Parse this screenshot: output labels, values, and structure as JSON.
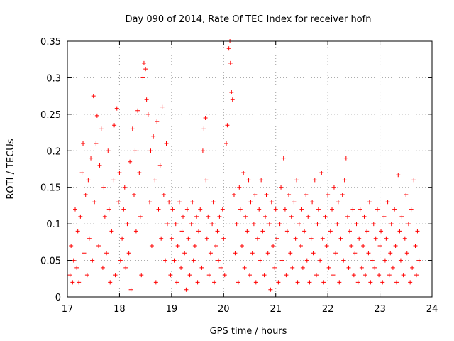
{
  "chart_data": {
    "type": "scatter",
    "title": "Day 090 of 2014, Rate Of TEC Index for receiver hofn",
    "xlabel": "GPS time / hours",
    "ylabel": "ROTI / TECUs",
    "xlim": [
      17,
      24
    ],
    "ylim": [
      0,
      0.35
    ],
    "xticks": [
      17,
      18,
      19,
      20,
      21,
      22,
      23,
      24
    ],
    "yticks": [
      0,
      0.05,
      0.1,
      0.15,
      0.2,
      0.25,
      0.3,
      0.35
    ],
    "xtick_labels": [
      "17",
      "18",
      "19",
      "20",
      "21",
      "22",
      "23",
      "24"
    ],
    "ytick_labels": [
      "0",
      "0.05",
      "0.1",
      "0.15",
      "0.2",
      "0.25",
      "0.3",
      "0.35"
    ],
    "grid": true,
    "marker": "+",
    "color": "#ff0000",
    "x_data_end": 23.75,
    "series": [
      {
        "name": "ROTI",
        "note": "dense scatter; points below are representative samples read from the plot",
        "points": [
          [
            17.05,
            0.03
          ],
          [
            17.07,
            0.07
          ],
          [
            17.1,
            0.02
          ],
          [
            17.12,
            0.05
          ],
          [
            17.15,
            0.12
          ],
          [
            17.18,
            0.04
          ],
          [
            17.2,
            0.09
          ],
          [
            17.22,
            0.02
          ],
          [
            17.25,
            0.11
          ],
          [
            17.28,
            0.17
          ],
          [
            17.3,
            0.21
          ],
          [
            17.32,
            0.06
          ],
          [
            17.35,
            0.14
          ],
          [
            17.38,
            0.03
          ],
          [
            17.4,
            0.16
          ],
          [
            17.42,
            0.08
          ],
          [
            17.45,
            0.19
          ],
          [
            17.48,
            0.05
          ],
          [
            17.5,
            0.275
          ],
          [
            17.52,
            0.13
          ],
          [
            17.55,
            0.21
          ],
          [
            17.57,
            0.248
          ],
          [
            17.6,
            0.07
          ],
          [
            17.62,
            0.18
          ],
          [
            17.65,
            0.23
          ],
          [
            17.68,
            0.04
          ],
          [
            17.7,
            0.15
          ],
          [
            17.72,
            0.11
          ],
          [
            17.75,
            0.06
          ],
          [
            17.78,
            0.2
          ],
          [
            17.8,
            0.12
          ],
          [
            17.82,
            0.02
          ],
          [
            17.85,
            0.09
          ],
          [
            17.88,
            0.16
          ],
          [
            17.9,
            0.235
          ],
          [
            17.92,
            0.03
          ],
          [
            17.95,
            0.258
          ],
          [
            17.98,
            0.13
          ],
          [
            18.0,
            0.17
          ],
          [
            18.02,
            0.05
          ],
          [
            18.05,
            0.08
          ],
          [
            18.08,
            0.12
          ],
          [
            18.1,
            0.15
          ],
          [
            18.12,
            0.04
          ],
          [
            18.15,
            0.1
          ],
          [
            18.18,
            0.06
          ],
          [
            18.2,
            0.185
          ],
          [
            18.22,
            0.01
          ],
          [
            18.25,
            0.23
          ],
          [
            18.28,
            0.14
          ],
          [
            18.3,
            0.2
          ],
          [
            18.32,
            0.09
          ],
          [
            18.35,
            0.255
          ],
          [
            18.38,
            0.17
          ],
          [
            18.4,
            0.11
          ],
          [
            18.42,
            0.03
          ],
          [
            18.45,
            0.3
          ],
          [
            18.47,
            0.32
          ],
          [
            18.5,
            0.312
          ],
          [
            18.52,
            0.27
          ],
          [
            18.55,
            0.25
          ],
          [
            18.58,
            0.13
          ],
          [
            18.6,
            0.2
          ],
          [
            18.62,
            0.07
          ],
          [
            18.65,
            0.22
          ],
          [
            18.68,
            0.16
          ],
          [
            18.7,
            0.02
          ],
          [
            18.72,
            0.24
          ],
          [
            18.75,
            0.12
          ],
          [
            18.78,
            0.18
          ],
          [
            18.8,
            0.08
          ],
          [
            18.82,
            0.26
          ],
          [
            18.85,
            0.14
          ],
          [
            18.88,
            0.05
          ],
          [
            18.9,
            0.21
          ],
          [
            18.92,
            0.1
          ],
          [
            18.95,
            0.13
          ],
          [
            18.98,
            0.03
          ],
          [
            19.0,
            0.08
          ],
          [
            19.02,
            0.12
          ],
          [
            19.05,
            0.05
          ],
          [
            19.08,
            0.1
          ],
          [
            19.1,
            0.02
          ],
          [
            19.12,
            0.07
          ],
          [
            19.15,
            0.13
          ],
          [
            19.18,
            0.04
          ],
          [
            19.2,
            0.09
          ],
          [
            19.22,
            0.11
          ],
          [
            19.25,
            0.06
          ],
          [
            19.28,
            0.01
          ],
          [
            19.3,
            0.12
          ],
          [
            19.32,
            0.08
          ],
          [
            19.35,
            0.03
          ],
          [
            19.38,
            0.1
          ],
          [
            19.4,
            0.13
          ],
          [
            19.42,
            0.05
          ],
          [
            19.45,
            0.07
          ],
          [
            19.48,
            0.11
          ],
          [
            19.5,
            0.02
          ],
          [
            19.52,
            0.09
          ],
          [
            19.55,
            0.12
          ],
          [
            19.58,
            0.04
          ],
          [
            19.6,
            0.2
          ],
          [
            19.62,
            0.23
          ],
          [
            19.65,
            0.245
          ],
          [
            19.66,
            0.16
          ],
          [
            19.68,
            0.08
          ],
          [
            19.7,
            0.11
          ],
          [
            19.72,
            0.03
          ],
          [
            19.75,
            0.06
          ],
          [
            19.78,
            0.1
          ],
          [
            19.8,
            0.13
          ],
          [
            19.82,
            0.02
          ],
          [
            19.85,
            0.07
          ],
          [
            19.88,
            0.09
          ],
          [
            19.9,
            0.05
          ],
          [
            19.92,
            0.11
          ],
          [
            19.95,
            0.04
          ],
          [
            19.98,
            0.12
          ],
          [
            20.0,
            0.08
          ],
          [
            20.02,
            0.03
          ],
          [
            20.05,
            0.21
          ],
          [
            20.07,
            0.235
          ],
          [
            20.1,
            0.34
          ],
          [
            20.12,
            0.35
          ],
          [
            20.13,
            0.32
          ],
          [
            20.15,
            0.28
          ],
          [
            20.17,
            0.27
          ],
          [
            20.2,
            0.14
          ],
          [
            20.22,
            0.06
          ],
          [
            20.25,
            0.1
          ],
          [
            20.28,
            0.02
          ],
          [
            20.3,
            0.15
          ],
          [
            20.32,
            0.12
          ],
          [
            20.35,
            0.07
          ],
          [
            20.38,
            0.17
          ],
          [
            20.4,
            0.04
          ],
          [
            20.42,
            0.11
          ],
          [
            20.45,
            0.09
          ],
          [
            20.48,
            0.16
          ],
          [
            20.5,
            0.03
          ],
          [
            20.52,
            0.13
          ],
          [
            20.55,
            0.06
          ],
          [
            20.58,
            0.1
          ],
          [
            20.6,
            0.14
          ],
          [
            20.62,
            0.02
          ],
          [
            20.65,
            0.08
          ],
          [
            20.68,
            0.12
          ],
          [
            20.7,
            0.05
          ],
          [
            20.72,
            0.16
          ],
          [
            20.75,
            0.09
          ],
          [
            20.78,
            0.03
          ],
          [
            20.8,
            0.11
          ],
          [
            20.82,
            0.14
          ],
          [
            20.85,
            0.06
          ],
          [
            20.88,
            0.1
          ],
          [
            20.9,
            0.01
          ],
          [
            20.92,
            0.13
          ],
          [
            20.95,
            0.07
          ],
          [
            20.98,
            0.04
          ],
          [
            21.0,
            0.12
          ],
          [
            21.02,
            0.08
          ],
          [
            21.05,
            0.02
          ],
          [
            21.08,
            0.1
          ],
          [
            21.1,
            0.15
          ],
          [
            21.12,
            0.05
          ],
          [
            21.15,
            0.19
          ],
          [
            21.18,
            0.12
          ],
          [
            21.2,
            0.03
          ],
          [
            21.22,
            0.09
          ],
          [
            21.25,
            0.14
          ],
          [
            21.28,
            0.06
          ],
          [
            21.3,
            0.11
          ],
          [
            21.32,
            0.04
          ],
          [
            21.35,
            0.13
          ],
          [
            21.38,
            0.08
          ],
          [
            21.4,
            0.16
          ],
          [
            21.42,
            0.02
          ],
          [
            21.45,
            0.1
          ],
          [
            21.48,
            0.07
          ],
          [
            21.5,
            0.12
          ],
          [
            21.52,
            0.04
          ],
          [
            21.55,
            0.09
          ],
          [
            21.58,
            0.14
          ],
          [
            21.6,
            0.05
          ],
          [
            21.62,
            0.11
          ],
          [
            21.65,
            0.02
          ],
          [
            21.68,
            0.08
          ],
          [
            21.7,
            0.13
          ],
          [
            21.72,
            0.06
          ],
          [
            21.75,
            0.16
          ],
          [
            21.78,
            0.03
          ],
          [
            21.8,
            0.1
          ],
          [
            21.82,
            0.12
          ],
          [
            21.85,
            0.05
          ],
          [
            21.88,
            0.17
          ],
          [
            21.9,
            0.08
          ],
          [
            21.92,
            0.02
          ],
          [
            21.95,
            0.11
          ],
          [
            21.98,
            0.07
          ],
          [
            22.0,
            0.14
          ],
          [
            22.02,
            0.04
          ],
          [
            22.05,
            0.09
          ],
          [
            22.08,
            0.12
          ],
          [
            22.1,
            0.03
          ],
          [
            22.12,
            0.15
          ],
          [
            22.15,
            0.06
          ],
          [
            22.18,
            0.1
          ],
          [
            22.2,
            0.13
          ],
          [
            22.22,
            0.02
          ],
          [
            22.25,
            0.08
          ],
          [
            22.28,
            0.14
          ],
          [
            22.3,
            0.05
          ],
          [
            22.32,
            0.16
          ],
          [
            22.35,
            0.19
          ],
          [
            22.38,
            0.11
          ],
          [
            22.4,
            0.04
          ],
          [
            22.42,
            0.09
          ],
          [
            22.45,
            0.07
          ],
          [
            22.48,
            0.12
          ],
          [
            22.5,
            0.03
          ],
          [
            22.52,
            0.06
          ],
          [
            22.55,
            0.1
          ],
          [
            22.58,
            0.02
          ],
          [
            22.6,
            0.08
          ],
          [
            22.62,
            0.12
          ],
          [
            22.65,
            0.04
          ],
          [
            22.68,
            0.07
          ],
          [
            22.7,
            0.11
          ],
          [
            22.72,
            0.03
          ],
          [
            22.75,
            0.09
          ],
          [
            22.78,
            0.06
          ],
          [
            22.8,
            0.13
          ],
          [
            22.82,
            0.02
          ],
          [
            22.85,
            0.05
          ],
          [
            22.88,
            0.1
          ],
          [
            22.9,
            0.04
          ],
          [
            22.92,
            0.08
          ],
          [
            22.95,
            0.12
          ],
          [
            22.98,
            0.03
          ],
          [
            23.0,
            0.07
          ],
          [
            23.02,
            0.09
          ],
          [
            23.05,
            0.02
          ],
          [
            23.08,
            0.11
          ],
          [
            23.1,
            0.05
          ],
          [
            23.12,
            0.08
          ],
          [
            23.15,
            0.13
          ],
          [
            23.18,
            0.03
          ],
          [
            23.2,
            0.06
          ],
          [
            23.22,
            0.1
          ],
          [
            23.25,
            0.04
          ],
          [
            23.28,
            0.12
          ],
          [
            23.3,
            0.07
          ],
          [
            23.32,
            0.02
          ],
          [
            23.35,
            0.167
          ],
          [
            23.38,
            0.09
          ],
          [
            23.4,
            0.05
          ],
          [
            23.42,
            0.11
          ],
          [
            23.45,
            0.03
          ],
          [
            23.48,
            0.08
          ],
          [
            23.5,
            0.14
          ],
          [
            23.52,
            0.06
          ],
          [
            23.55,
            0.1
          ],
          [
            23.58,
            0.02
          ],
          [
            23.6,
            0.12
          ],
          [
            23.62,
            0.04
          ],
          [
            23.65,
            0.16
          ],
          [
            23.68,
            0.07
          ],
          [
            23.7,
            0.03
          ],
          [
            23.72,
            0.09
          ],
          [
            23.75,
            0.05
          ]
        ]
      }
    ]
  }
}
